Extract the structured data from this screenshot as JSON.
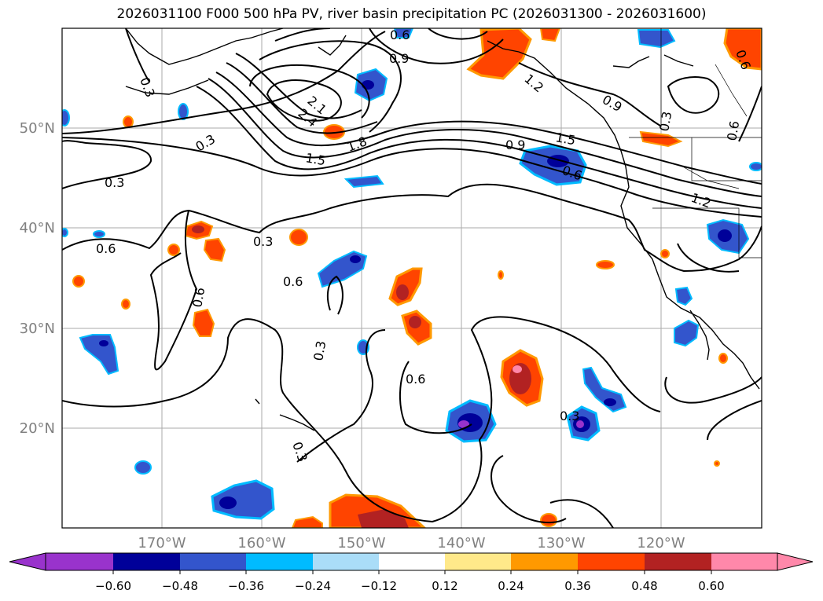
{
  "title": "2026031100 F000 500 hPa PV, river basin precipitation PC (2026031300 - 2026031600)",
  "map": {
    "lon_labels": [
      "170°W",
      "160°W",
      "150°W",
      "140°W",
      "130°W",
      "120°W"
    ],
    "lat_labels": [
      "50°N",
      "40°N",
      "30°N",
      "20°N"
    ],
    "pv_contour_labels": [
      "0.3",
      "0.3",
      "0.3",
      "0.6",
      "0.6",
      "0.6",
      "0.6",
      "0.9",
      "0.9",
      "1.2",
      "1.5",
      "1.8",
      "2.1",
      "2.4",
      "0.3",
      "0.6",
      "0.3",
      "0.6",
      "0.3",
      "0.9",
      "0.6",
      "0.3",
      "1.5",
      "1.2",
      "0.3",
      "0.6"
    ]
  },
  "colorbar": {
    "ticks": [
      "−0.60",
      "−0.48",
      "−0.36",
      "−0.24",
      "−0.12",
      "0.12",
      "0.24",
      "0.36",
      "0.48",
      "0.60"
    ],
    "colors": [
      "#9933cc",
      "#000099",
      "#3355cc",
      "#00bbff",
      "#aaddf8",
      "#ffffff",
      "#ffe98a",
      "#ff9900",
      "#ff4400",
      "#b22222",
      "#ff88aa"
    ]
  },
  "colors": {
    "frame": "#000000",
    "grid": "#aaaaaa",
    "axis_label": "#808080",
    "contour": "#000000"
  }
}
